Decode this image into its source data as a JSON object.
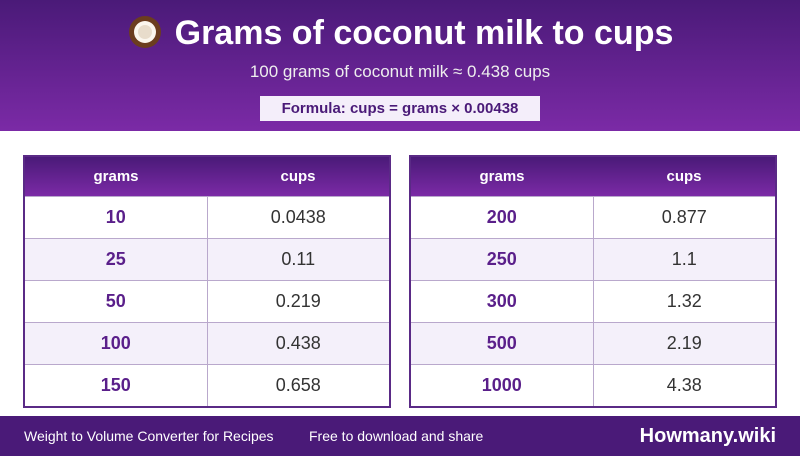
{
  "header": {
    "title": "Grams of coconut milk to cups",
    "subtitle": "100 grams of coconut milk ≈ 0.438 cups",
    "formula": "Formula: cups = grams × 0.00438"
  },
  "tables": [
    {
      "columns": [
        "grams",
        "cups"
      ],
      "rows": [
        [
          "10",
          "0.0438"
        ],
        [
          "25",
          "0.11"
        ],
        [
          "50",
          "0.219"
        ],
        [
          "100",
          "0.438"
        ],
        [
          "150",
          "0.658"
        ]
      ]
    },
    {
      "columns": [
        "grams",
        "cups"
      ],
      "rows": [
        [
          "200",
          "0.877"
        ],
        [
          "250",
          "1.1"
        ],
        [
          "300",
          "1.32"
        ],
        [
          "500",
          "2.19"
        ],
        [
          "1000",
          "4.38"
        ]
      ]
    }
  ],
  "footer": {
    "left": "Weight to Volume Converter for Recipes",
    "middle": "Free to download and share",
    "brand": "Howmany.wiki"
  }
}
